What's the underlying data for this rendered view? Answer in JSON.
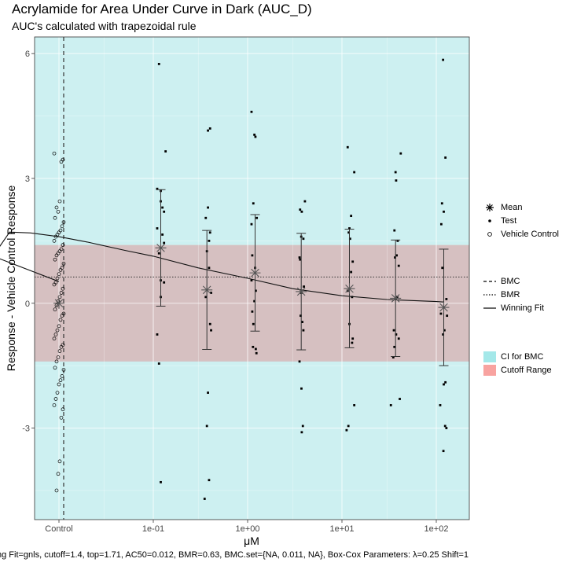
{
  "title": "Acrylamide for Area Under Curve in Dark (AUC_D)",
  "subtitle": "AUC's calculated with trapezoidal rule",
  "footer": "ng Fit=gnls, cutoff=1.4, top=1.71, AC50=0.012, BMR=0.63, BMC.set={NA, 0.011, NA}, Box-Cox Parameters: λ=0.25 Shift=1",
  "legend": {
    "points": [
      "Mean",
      "Test",
      "Vehicle Control"
    ],
    "lines": [
      "BMC",
      "BMR",
      "Winning Fit"
    ],
    "fills": [
      "CI for BMC",
      "Cutoff Range"
    ]
  },
  "colors": {
    "ci_fill": "#cdf0f1",
    "cutoff_fill": "#d6c0c1",
    "ci_key": "#a4e8e9",
    "cutoff_key": "#f8a3a0"
  },
  "chart_data": {
    "type": "scatter",
    "xlabel": "μM",
    "ylabel": "Response - Vehicle Control Response",
    "x_scale": "log10",
    "x_ticks": [
      "Control",
      "1e-01",
      "1e+00",
      "1e+01",
      "1e+02"
    ],
    "x_tick_values": [
      null,
      0.1,
      1,
      10,
      100
    ],
    "y_ticks": [
      -3,
      0,
      3,
      6
    ],
    "ylim": [
      -5.2,
      6.4
    ],
    "grid": true,
    "cutoff": 1.4,
    "bmr": 0.63,
    "bmc": 0.011,
    "ci_bmc": [
      null,
      null
    ],
    "means": [
      {
        "x": "Control",
        "y": 0.0
      },
      {
        "x": 0.12,
        "y": 1.33,
        "lo": -0.07,
        "hi": 2.73
      },
      {
        "x": 0.37,
        "y": 0.32,
        "lo": -1.11,
        "hi": 1.75
      },
      {
        "x": 1.2,
        "y": 0.73,
        "lo": -0.67,
        "hi": 2.13
      },
      {
        "x": 3.7,
        "y": 0.28,
        "lo": -1.12,
        "hi": 1.68
      },
      {
        "x": 12,
        "y": 0.35,
        "lo": -1.07,
        "hi": 1.78
      },
      {
        "x": 37,
        "y": 0.12,
        "lo": -1.28,
        "hi": 1.52
      },
      {
        "x": 120,
        "y": -0.1,
        "lo": -1.5,
        "hi": 1.3
      }
    ],
    "fit_curve": [
      {
        "x": 0.001,
        "y": 0.52
      },
      {
        "x": 0.002,
        "y": 1.13
      },
      {
        "x": 0.003,
        "y": 1.71
      },
      {
        "x": 0.005,
        "y": 1.69
      },
      {
        "x": 0.01,
        "y": 1.6
      },
      {
        "x": 0.02,
        "y": 1.47
      },
      {
        "x": 0.05,
        "y": 1.27
      },
      {
        "x": 0.1,
        "y": 1.13
      },
      {
        "x": 0.3,
        "y": 0.85
      },
      {
        "x": 1,
        "y": 0.6
      },
      {
        "x": 3,
        "y": 0.35
      },
      {
        "x": 10,
        "y": 0.18
      },
      {
        "x": 30,
        "y": 0.09
      },
      {
        "x": 100,
        "y": 0.04
      },
      {
        "x": 120,
        "y": 0.03
      }
    ],
    "test_points": [
      {
        "x": 0.115,
        "y": 5.75
      },
      {
        "x": 0.11,
        "y": 2.75
      },
      {
        "x": 0.12,
        "y": 2.7
      },
      {
        "x": 0.12,
        "y": 2.45
      },
      {
        "x": 0.125,
        "y": 2.3
      },
      {
        "x": 0.13,
        "y": 2.2
      },
      {
        "x": 0.11,
        "y": 1.8
      },
      {
        "x": 0.125,
        "y": 1.65
      },
      {
        "x": 0.13,
        "y": 1.45
      },
      {
        "x": 0.115,
        "y": 1.2
      },
      {
        "x": 0.12,
        "y": 0.55
      },
      {
        "x": 0.13,
        "y": 0.5
      },
      {
        "x": 0.12,
        "y": 0.15
      },
      {
        "x": 0.11,
        "y": -0.75
      },
      {
        "x": 0.115,
        "y": -1.45
      },
      {
        "x": 0.12,
        "y": -4.3
      },
      {
        "x": 0.135,
        "y": 3.65
      },
      {
        "x": 0.38,
        "y": 4.15
      },
      {
        "x": 0.4,
        "y": 4.2
      },
      {
        "x": 0.36,
        "y": 2.05
      },
      {
        "x": 0.38,
        "y": 2.3
      },
      {
        "x": 0.4,
        "y": 1.7
      },
      {
        "x": 0.39,
        "y": 1.5
      },
      {
        "x": 0.37,
        "y": 1.25
      },
      {
        "x": 0.39,
        "y": 0.85
      },
      {
        "x": 0.41,
        "y": 0.25
      },
      {
        "x": 0.36,
        "y": 0.15
      },
      {
        "x": 0.4,
        "y": -0.5
      },
      {
        "x": 0.41,
        "y": -0.65
      },
      {
        "x": 0.38,
        "y": -2.15
      },
      {
        "x": 0.37,
        "y": -2.95
      },
      {
        "x": 0.39,
        "y": -4.25
      },
      {
        "x": 0.35,
        "y": -4.7
      },
      {
        "x": 1.1,
        "y": 4.6
      },
      {
        "x": 1.18,
        "y": 4.05
      },
      {
        "x": 1.21,
        "y": 4.0
      },
      {
        "x": 1.15,
        "y": 2.4
      },
      {
        "x": 1.25,
        "y": 2.05
      },
      {
        "x": 1.1,
        "y": 1.9
      },
      {
        "x": 1.12,
        "y": 1.15
      },
      {
        "x": 1.2,
        "y": 0.85
      },
      {
        "x": 1.1,
        "y": 0.55
      },
      {
        "x": 1.22,
        "y": 0.3
      },
      {
        "x": 1.18,
        "y": 0.05
      },
      {
        "x": 1.12,
        "y": -0.2
      },
      {
        "x": 1.15,
        "y": -0.5
      },
      {
        "x": 1.14,
        "y": -1.05
      },
      {
        "x": 1.22,
        "y": -1.1
      },
      {
        "x": 1.24,
        "y": -1.2
      },
      {
        "x": 3.6,
        "y": 2.25
      },
      {
        "x": 3.75,
        "y": 2.2
      },
      {
        "x": 4.05,
        "y": 2.45
      },
      {
        "x": 3.7,
        "y": 1.6
      },
      {
        "x": 3.9,
        "y": 1.55
      },
      {
        "x": 3.55,
        "y": 1.1
      },
      {
        "x": 3.6,
        "y": 1.05
      },
      {
        "x": 3.95,
        "y": 0.4
      },
      {
        "x": 3.7,
        "y": 0.25
      },
      {
        "x": 3.65,
        "y": -0.3
      },
      {
        "x": 3.8,
        "y": -0.45
      },
      {
        "x": 3.9,
        "y": -0.65
      },
      {
        "x": 3.55,
        "y": -1.4
      },
      {
        "x": 3.72,
        "y": -2.05
      },
      {
        "x": 3.85,
        "y": -2.95
      },
      {
        "x": 3.75,
        "y": -3.1
      },
      {
        "x": 11.5,
        "y": 3.75
      },
      {
        "x": 13.5,
        "y": 3.15
      },
      {
        "x": 12.5,
        "y": 2.1
      },
      {
        "x": 12,
        "y": 1.8
      },
      {
        "x": 11.8,
        "y": 1.7
      },
      {
        "x": 12.2,
        "y": 1.55
      },
      {
        "x": 13,
        "y": 1.0
      },
      {
        "x": 12.5,
        "y": 0.75
      },
      {
        "x": 11.5,
        "y": 0.3
      },
      {
        "x": 12.8,
        "y": 0.15
      },
      {
        "x": 12,
        "y": -0.5
      },
      {
        "x": 13,
        "y": -0.85
      },
      {
        "x": 12.8,
        "y": -0.95
      },
      {
        "x": 13.5,
        "y": -2.45
      },
      {
        "x": 11.7,
        "y": -2.95
      },
      {
        "x": 11.2,
        "y": -3.05
      },
      {
        "x": 37,
        "y": 3.15
      },
      {
        "x": 42,
        "y": 3.6
      },
      {
        "x": 37.5,
        "y": 2.95
      },
      {
        "x": 36,
        "y": 1.75
      },
      {
        "x": 39,
        "y": 1.5
      },
      {
        "x": 38,
        "y": 1.15
      },
      {
        "x": 36.5,
        "y": 1.1
      },
      {
        "x": 40,
        "y": 0.9
      },
      {
        "x": 38.5,
        "y": 0.15
      },
      {
        "x": 35.5,
        "y": -0.65
      },
      {
        "x": 37.5,
        "y": -0.75
      },
      {
        "x": 40,
        "y": -0.85
      },
      {
        "x": 36,
        "y": -1.05
      },
      {
        "x": 35,
        "y": -1.3
      },
      {
        "x": 41,
        "y": -2.3
      },
      {
        "x": 33,
        "y": -2.45
      },
      {
        "x": 118,
        "y": 5.85
      },
      {
        "x": 125,
        "y": 3.5
      },
      {
        "x": 115,
        "y": 2.4
      },
      {
        "x": 120,
        "y": 2.2
      },
      {
        "x": 113,
        "y": 1.9
      },
      {
        "x": 116,
        "y": 0.85
      },
      {
        "x": 128,
        "y": 0.1
      },
      {
        "x": 112,
        "y": -0.25
      },
      {
        "x": 130,
        "y": -0.3
      },
      {
        "x": 122,
        "y": -0.65
      },
      {
        "x": 118,
        "y": -0.75
      },
      {
        "x": 125,
        "y": -1.9
      },
      {
        "x": 120,
        "y": -1.95
      },
      {
        "x": 110,
        "y": -2.45
      },
      {
        "x": 124,
        "y": -2.95
      },
      {
        "x": 128,
        "y": -3.0
      },
      {
        "x": 119,
        "y": -3.55
      }
    ],
    "control_points": [
      3.6,
      3.45,
      3.4,
      2.45,
      2.2,
      2.3,
      2.05,
      1.95,
      1.85,
      1.75,
      1.7,
      1.65,
      1.6,
      1.5,
      1.4,
      1.3,
      1.25,
      1.2,
      1.15,
      1.05,
      0.95,
      0.85,
      0.8,
      0.7,
      0.6,
      0.5,
      0.45,
      0.35,
      0.25,
      0.15,
      0.05,
      -0.05,
      -0.15,
      -0.25,
      -0.3,
      -0.4,
      -0.55,
      -0.65,
      -0.75,
      -0.85,
      -1.0,
      -1.05,
      -1.15,
      -1.3,
      -1.4,
      -1.55,
      -1.6,
      -1.75,
      -1.85,
      -1.95,
      -2.15,
      -2.3,
      -2.45,
      -2.55,
      -2.75,
      -3.8,
      -4.1,
      -4.5
    ]
  }
}
